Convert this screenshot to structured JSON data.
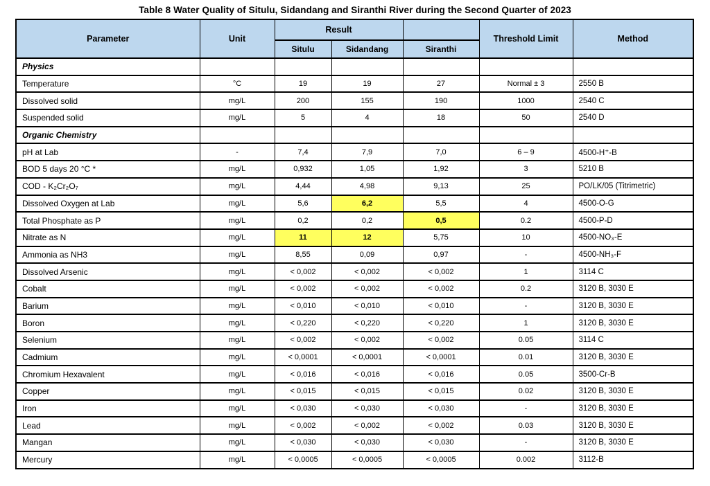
{
  "title": "Table 8 Water Quality of Situlu, Sidandang and Siranthi River during the Second Quarter of 2023",
  "colors": {
    "header_bg": "#bdd7ee",
    "highlight": "#ffff5e",
    "border": "#000000",
    "page_bg": "#ffffff"
  },
  "header": {
    "parameter": "Parameter",
    "unit": "Unit",
    "result": "Result",
    "threshold": "Threshold Limit",
    "method": "Method",
    "stations": [
      "Situlu",
      "Sidandang",
      "Siranthi"
    ]
  },
  "rows": [
    {
      "type": "section",
      "parameter": "Physics"
    },
    {
      "type": "data",
      "parameter": "Temperature",
      "unit": "°C",
      "situlu": "19",
      "sidandang": "19",
      "siranthi": "27",
      "threshold": "Normal ± 3",
      "method": "2550 B"
    },
    {
      "type": "data",
      "parameter": "Dissolved solid",
      "unit": "mg/L",
      "situlu": "200",
      "sidandang": "155",
      "siranthi": "190",
      "threshold": "1000",
      "method": "2540 C"
    },
    {
      "type": "data",
      "parameter": "Suspended solid",
      "unit": "mg/L",
      "situlu": "5",
      "sidandang": "4",
      "siranthi": "18",
      "threshold": "50",
      "method": "2540 D"
    },
    {
      "type": "section",
      "parameter": "Organic Chemistry"
    },
    {
      "type": "data",
      "parameter": "pH at Lab",
      "unit": "-",
      "situlu": "7,4",
      "sidandang": "7,9",
      "siranthi": "7,0",
      "threshold": "6 – 9",
      "method": "4500-H⁺-B"
    },
    {
      "type": "data",
      "parameter": "BOD 5 days 20 °C *",
      "unit": "mg/L",
      "situlu": "0,932",
      "sidandang": "1,05",
      "siranthi": "1,92",
      "threshold": "3",
      "method": "5210 B"
    },
    {
      "type": "data",
      "parameter": "COD - K₂Cr₂O₇",
      "unit": "mg/L",
      "situlu": "4,44",
      "sidandang": "4,98",
      "siranthi": "9,13",
      "threshold": "25",
      "method": "PO/LK/05 (Titrimetric)"
    },
    {
      "type": "data",
      "parameter": "Dissolved Oxygen at Lab",
      "unit": "mg/L",
      "situlu": "5,6",
      "sidandang": "6,2",
      "siranthi": "5,5",
      "threshold": "4",
      "method": "4500-O-G",
      "highlight": [
        "sidandang"
      ]
    },
    {
      "type": "data",
      "parameter": "Total Phosphate as P",
      "unit": "mg/L",
      "situlu": "0,2",
      "sidandang": "0,2",
      "siranthi": "0,5",
      "threshold": "0.2",
      "method": "4500-P-D",
      "highlight": [
        "siranthi"
      ]
    },
    {
      "type": "data",
      "parameter": "Nitrate as N",
      "unit": "mg/L",
      "situlu": "11",
      "sidandang": "12",
      "siranthi": "5,75",
      "threshold": "10",
      "method": "4500-NO₃-E",
      "highlight": [
        "situlu",
        "sidandang"
      ]
    },
    {
      "type": "data",
      "parameter": "Ammonia as NH3",
      "unit": "mg/L",
      "situlu": "8,55",
      "sidandang": "0,09",
      "siranthi": "0,97",
      "threshold": "-",
      "method": "4500-NH₃-F"
    },
    {
      "type": "data",
      "parameter": "Dissolved Arsenic",
      "unit": "mg/L",
      "situlu": "< 0,002",
      "sidandang": "< 0,002",
      "siranthi": "< 0,002",
      "threshold": "1",
      "method": "3114 C"
    },
    {
      "type": "data",
      "parameter": "Cobalt",
      "unit": "mg/L",
      "situlu": "< 0,002",
      "sidandang": "< 0,002",
      "siranthi": "< 0,002",
      "threshold": "0.2",
      "method": "3120 B, 3030 E"
    },
    {
      "type": "data",
      "parameter": "Barium",
      "unit": "mg/L",
      "situlu": "< 0,010",
      "sidandang": "< 0,010",
      "siranthi": "< 0,010",
      "threshold": "-",
      "method": "3120 B, 3030 E"
    },
    {
      "type": "data",
      "parameter": "Boron",
      "unit": "mg/L",
      "situlu": "< 0,220",
      "sidandang": "< 0,220",
      "siranthi": "< 0,220",
      "threshold": "1",
      "method": "3120 B, 3030 E"
    },
    {
      "type": "data",
      "parameter": "Selenium",
      "unit": "mg/L",
      "situlu": "< 0,002",
      "sidandang": "< 0,002",
      "siranthi": "< 0,002",
      "threshold": "0.05",
      "method": "3114 C"
    },
    {
      "type": "data",
      "parameter": "Cadmium",
      "unit": "mg/L",
      "situlu": "< 0,0001",
      "sidandang": "< 0,0001",
      "siranthi": "< 0,0001",
      "threshold": "0.01",
      "method": "3120 B, 3030 E"
    },
    {
      "type": "data",
      "parameter": "Chromium Hexavalent",
      "unit": "mg/L",
      "situlu": "< 0,016",
      "sidandang": "< 0,016",
      "siranthi": "< 0,016",
      "threshold": "0.05",
      "method": "3500-Cr-B"
    },
    {
      "type": "data",
      "parameter": "Copper",
      "unit": "mg/L",
      "situlu": "< 0,015",
      "sidandang": "< 0,015",
      "siranthi": "< 0,015",
      "threshold": "0.02",
      "method": "3120 B, 3030 E"
    },
    {
      "type": "data",
      "parameter": "Iron",
      "unit": "mg/L",
      "situlu": "< 0,030",
      "sidandang": "< 0,030",
      "siranthi": "< 0,030",
      "threshold": "-",
      "method": "3120 B, 3030 E"
    },
    {
      "type": "data",
      "parameter": "Lead",
      "unit": "mg/L",
      "situlu": "< 0,002",
      "sidandang": "< 0,002",
      "siranthi": "< 0,002",
      "threshold": "0.03",
      "method": "3120 B, 3030 E"
    },
    {
      "type": "data",
      "parameter": "Mangan",
      "unit": "mg/L",
      "situlu": "< 0,030",
      "sidandang": "< 0,030",
      "siranthi": "< 0,030",
      "threshold": "-",
      "method": "3120 B, 3030 E"
    },
    {
      "type": "data",
      "parameter": "Mercury",
      "unit": "mg/L",
      "situlu": "< 0,0005",
      "sidandang": "< 0,0005",
      "siranthi": "< 0,0005",
      "threshold": "0.002",
      "method": "3112-B"
    }
  ]
}
